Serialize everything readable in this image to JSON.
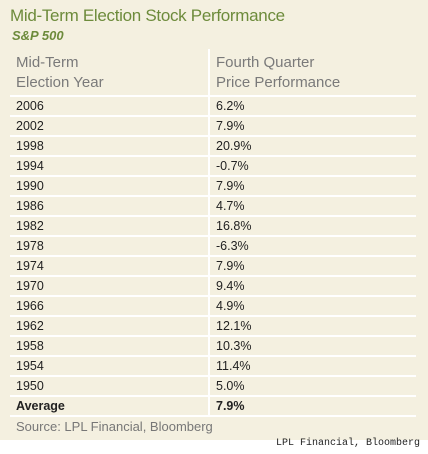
{
  "header": {
    "title": "Mid-Term Election Stock Performance",
    "subtitle": "S&P 500"
  },
  "table": {
    "columns": [
      [
        "Mid-Term",
        "Election Year"
      ],
      [
        "Fourth Quarter",
        "Price Performance"
      ]
    ],
    "rows": [
      [
        "2006",
        "6.2%"
      ],
      [
        "2002",
        "7.9%"
      ],
      [
        "1998",
        "20.9%"
      ],
      [
        "1994",
        "-0.7%"
      ],
      [
        "1990",
        "7.9%"
      ],
      [
        "1986",
        "4.7%"
      ],
      [
        "1982",
        "16.8%"
      ],
      [
        "1978",
        "-6.3%"
      ],
      [
        "1974",
        "7.9%"
      ],
      [
        "1970",
        "9.4%"
      ],
      [
        "1966",
        "4.9%"
      ],
      [
        "1962",
        "12.1%"
      ],
      [
        "1958",
        "10.3%"
      ],
      [
        "1954",
        "11.4%"
      ],
      [
        "1950",
        "5.0%"
      ]
    ],
    "average": [
      "Average",
      "7.9%"
    ]
  },
  "source": "Source: LPL Financial, Bloomberg",
  "credit": "LPL Financial, Bloomberg"
}
